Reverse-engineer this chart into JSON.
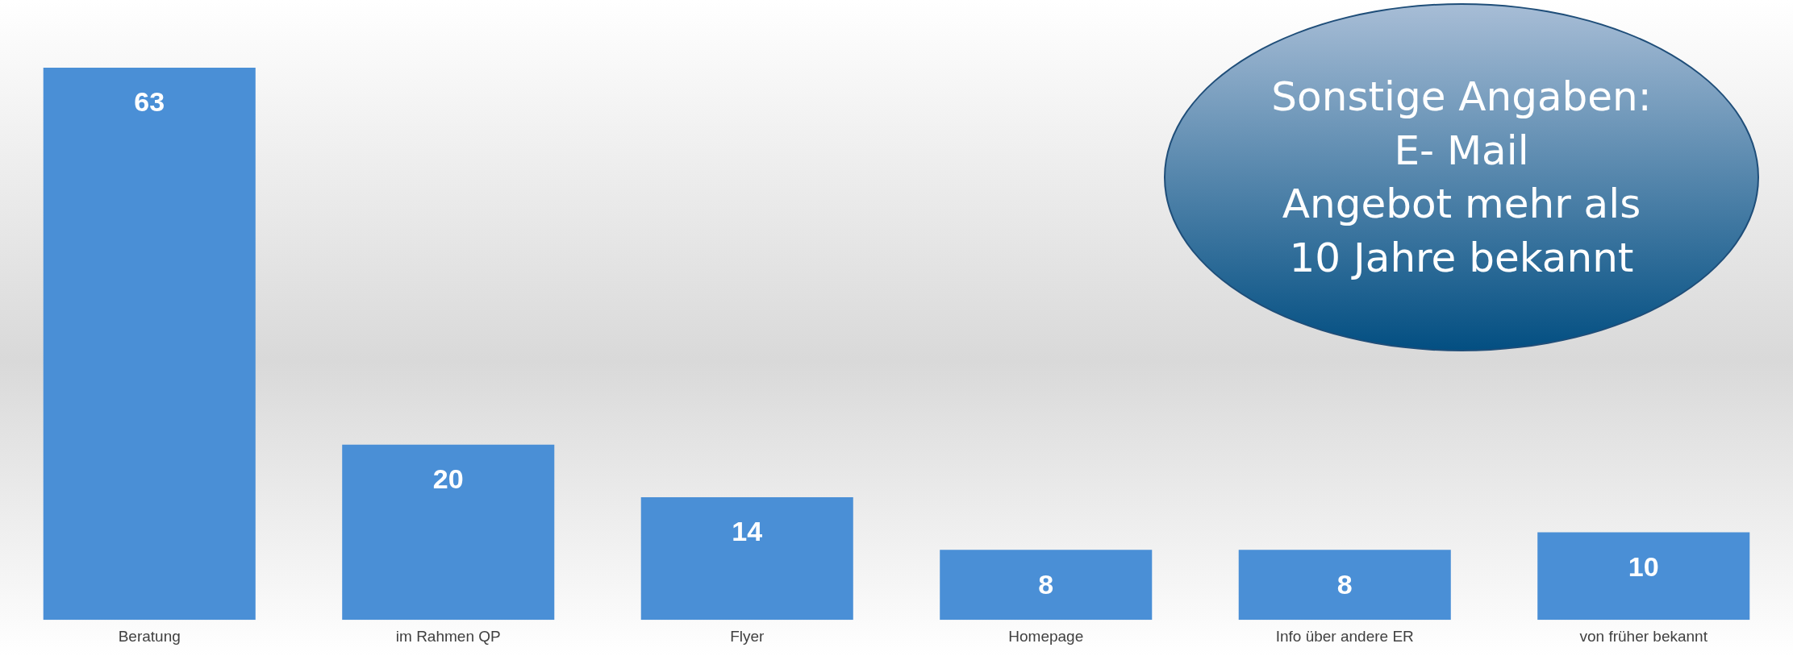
{
  "chart_data": {
    "type": "bar",
    "categories": [
      "Beratung",
      "im Rahmen QP",
      "Flyer",
      "Homepage",
      "Info über andere ER",
      "von früher bekannt"
    ],
    "values": [
      63,
      20,
      14,
      8,
      8,
      10
    ],
    "color": "#4a8fd6",
    "data_labels": true,
    "grid": false,
    "legend": false,
    "annotations": [
      "Sonstige Angaben:\nE- Mail\nAngebot mehr als\n10 Jahre bekannt"
    ]
  }
}
